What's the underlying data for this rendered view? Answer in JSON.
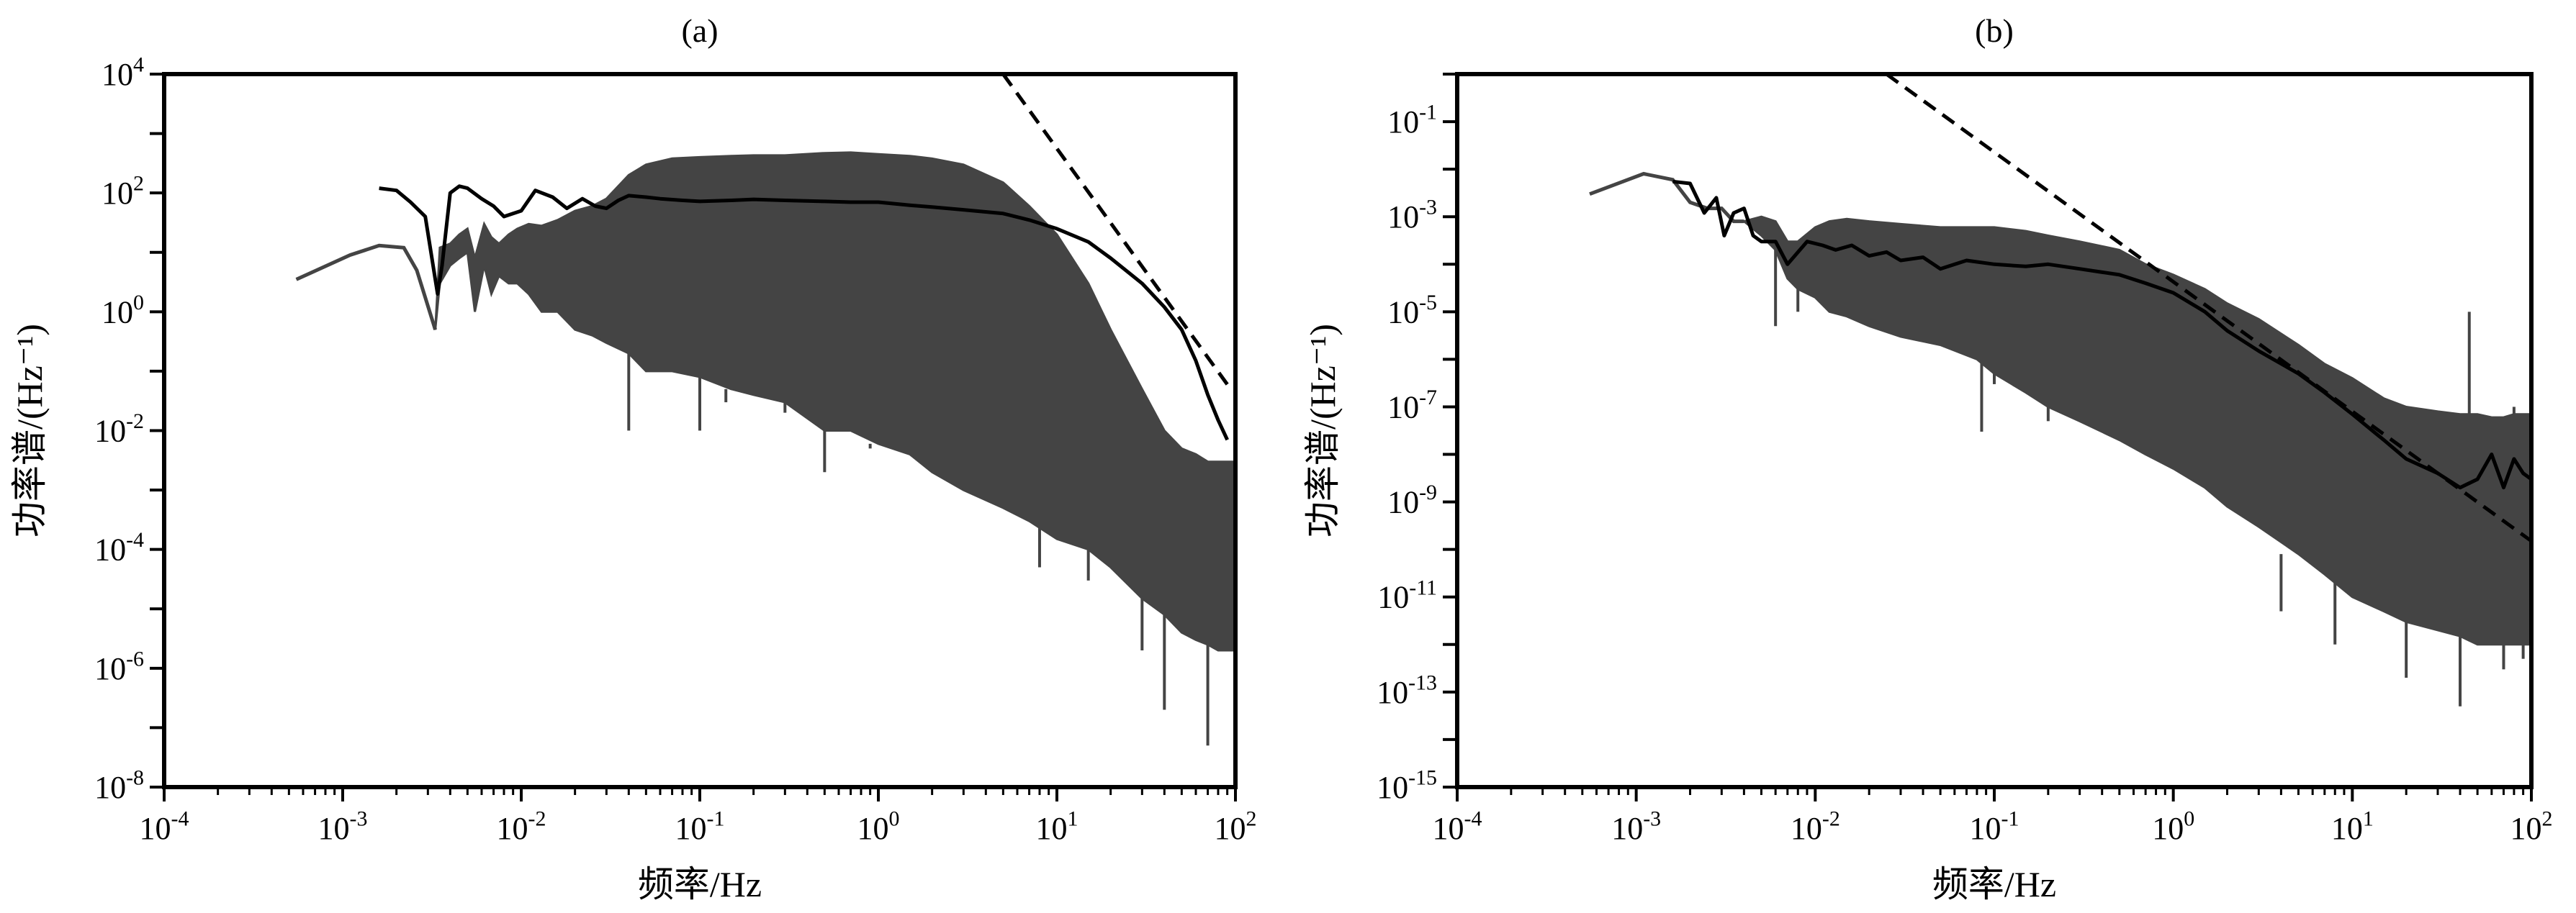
{
  "colors": {
    "raw_spectrum": "#444444",
    "smoothed_spectrum": "#000000",
    "reference_line": "#000000",
    "axes": "#000000"
  },
  "chart_data": [
    {
      "type": "line",
      "title": "(a)",
      "xlabel": "频率/Hz",
      "ylabel": "功率谱/(Hz⁻¹)",
      "x_scale": "log",
      "y_scale": "log",
      "xlim": [
        0.0001,
        100
      ],
      "ylim": [
        1e-08,
        10000
      ],
      "x_ticks": [
        {
          "base": "10",
          "exp": "-4"
        },
        {
          "base": "10",
          "exp": "-3"
        },
        {
          "base": "10",
          "exp": "-2"
        },
        {
          "base": "10",
          "exp": "-1"
        },
        {
          "base": "10",
          "exp": "0"
        },
        {
          "base": "10",
          "exp": "1"
        },
        {
          "base": "10",
          "exp": "2"
        }
      ],
      "y_ticks": [
        {
          "base": "10",
          "exp": "-8"
        },
        {
          "base": "10",
          "exp": "-6"
        },
        {
          "base": "10",
          "exp": "-4"
        },
        {
          "base": "10",
          "exp": "-2"
        },
        {
          "base": "10",
          "exp": "0"
        },
        {
          "base": "10",
          "exp": "2"
        },
        {
          "base": "10",
          "exp": "4"
        }
      ],
      "grid": false,
      "series": [
        {
          "style": "raw-spectrum-band",
          "x": [
            0.00055,
            0.0011,
            0.0016,
            0.0022,
            0.0026,
            0.0033,
            0.0035,
            0.004,
            0.0045,
            0.005,
            0.0055,
            0.0062,
            0.0068,
            0.0075,
            0.0085,
            0.0095,
            0.011,
            0.013,
            0.016,
            0.02,
            0.025,
            0.03,
            0.04,
            0.05,
            0.07,
            0.1,
            0.15,
            0.2,
            0.3,
            0.5,
            0.7,
            1,
            1.5,
            2,
            3,
            5,
            7,
            10,
            15,
            20,
            30,
            40,
            50,
            60,
            70,
            80,
            90,
            100
          ],
          "upper": [
            3.5,
            9,
            13,
            12,
            5,
            0.5,
            12,
            14,
            20,
            25,
            8,
            30,
            18,
            14,
            20,
            25,
            30,
            28,
            35,
            50,
            60,
            80,
            200,
            300,
            380,
            400,
            420,
            430,
            430,
            470,
            480,
            450,
            420,
            380,
            300,
            150,
            60,
            20,
            3,
            0.5,
            0.05,
            0.01,
            0.005,
            0.004,
            0.003,
            0.003,
            0.003,
            0.003
          ],
          "lower": [
            3.5,
            9,
            13,
            12,
            5,
            0.5,
            3,
            6,
            8,
            10,
            1,
            6,
            2,
            4,
            3,
            3,
            2,
            1,
            1,
            0.5,
            0.4,
            0.3,
            0.2,
            0.1,
            0.1,
            0.08,
            0.05,
            0.04,
            0.03,
            0.01,
            0.01,
            0.006,
            0.004,
            0.002,
            0.001,
            0.0005,
            0.0003,
            0.00015,
            0.0001,
            5e-05,
            1.5e-05,
            8e-06,
            4e-06,
            3e-06,
            2.5e-06,
            2e-06,
            2e-06,
            2e-06
          ],
          "dips": [
            [
              0.04,
              0.01
            ],
            [
              0.1,
              0.01
            ],
            [
              0.14,
              0.03
            ],
            [
              0.3,
              0.02
            ],
            [
              0.5,
              0.002
            ],
            [
              0.9,
              0.005
            ],
            [
              1.5,
              0.004
            ],
            [
              3,
              0.001
            ],
            [
              8,
              5e-05
            ],
            [
              15,
              3e-05
            ],
            [
              30,
              2e-06
            ],
            [
              40,
              2e-07
            ],
            [
              60,
              3e-06
            ],
            [
              70,
              5e-08
            ],
            [
              80,
              6e-06
            ]
          ]
        },
        {
          "style": "smoothed-spectrum",
          "x": [
            0.0016,
            0.002,
            0.0024,
            0.0029,
            0.0034,
            0.0036,
            0.004,
            0.0045,
            0.005,
            0.006,
            0.007,
            0.008,
            0.009,
            0.01,
            0.012,
            0.015,
            0.018,
            0.022,
            0.026,
            0.03,
            0.035,
            0.04,
            0.05,
            0.06,
            0.08,
            0.1,
            0.15,
            0.2,
            0.3,
            0.5,
            0.7,
            1,
            1.5,
            2,
            3,
            5,
            7,
            10,
            15,
            20,
            30,
            40,
            50,
            60,
            70,
            80,
            90
          ],
          "y": [
            120,
            110,
            70,
            40,
            2,
            6,
            100,
            130,
            120,
            80,
            60,
            40,
            45,
            50,
            110,
            85,
            55,
            80,
            60,
            55,
            75,
            90,
            85,
            80,
            75,
            72,
            75,
            78,
            75,
            72,
            70,
            70,
            62,
            58,
            52,
            45,
            35,
            25,
            15,
            8,
            3,
            1.2,
            0.5,
            0.15,
            0.04,
            0.015,
            0.007
          ]
        },
        {
          "style": "reference-dashed",
          "x": [
            5,
            90
          ],
          "y": [
            10000,
            0.06
          ]
        }
      ]
    },
    {
      "type": "line",
      "title": "(b)",
      "xlabel": "频率/Hz",
      "ylabel": "功率谱/(Hz⁻¹)",
      "x_scale": "log",
      "y_scale": "log",
      "xlim": [
        0.0001,
        100
      ],
      "ylim": [
        1e-15,
        1
      ],
      "x_ticks": [
        {
          "base": "10",
          "exp": "-4"
        },
        {
          "base": "10",
          "exp": "-3"
        },
        {
          "base": "10",
          "exp": "-2"
        },
        {
          "base": "10",
          "exp": "-1"
        },
        {
          "base": "10",
          "exp": "0"
        },
        {
          "base": "10",
          "exp": "1"
        },
        {
          "base": "10",
          "exp": "2"
        }
      ],
      "y_ticks": [
        {
          "base": "10",
          "exp": "-15"
        },
        {
          "base": "10",
          "exp": "-13"
        },
        {
          "base": "10",
          "exp": "-11"
        },
        {
          "base": "10",
          "exp": "-9"
        },
        {
          "base": "10",
          "exp": "-7"
        },
        {
          "base": "10",
          "exp": "-5"
        },
        {
          "base": "10",
          "exp": "-3"
        },
        {
          "base": "10",
          "exp": "-1"
        }
      ],
      "grid": false,
      "series": [
        {
          "style": "raw-spectrum-band",
          "x": [
            0.00055,
            0.0011,
            0.0016,
            0.002,
            0.0025,
            0.003,
            0.0035,
            0.004,
            0.005,
            0.006,
            0.007,
            0.008,
            0.01,
            0.012,
            0.015,
            0.02,
            0.03,
            0.05,
            0.08,
            0.1,
            0.15,
            0.2,
            0.3,
            0.5,
            0.7,
            1,
            1.5,
            2,
            3,
            5,
            7,
            10,
            15,
            20,
            30,
            40,
            50,
            60,
            70,
            80,
            90,
            100
          ],
          "upper": [
            0.003,
            0.008,
            0.006,
            0.002,
            0.0015,
            0.0015,
            0.0008,
            0.0008,
            0.001,
            0.0008,
            0.0003,
            0.0003,
            0.0006,
            0.0008,
            0.0009,
            0.0008,
            0.0007,
            0.0006,
            0.0006,
            0.0006,
            0.0005,
            0.0004,
            0.0003,
            0.0002,
            0.0001,
            6e-05,
            3e-05,
            1.5e-05,
            7e-06,
            2e-06,
            8e-07,
            4e-07,
            1.5e-07,
            1e-07,
            8e-08,
            7e-08,
            7e-08,
            6e-08,
            6e-08,
            7e-08,
            7e-08,
            7e-08
          ],
          "lower": [
            0.003,
            0.008,
            0.006,
            0.002,
            0.0015,
            0.0015,
            0.0008,
            0.0008,
            0.0004,
            0.0002,
            5e-05,
            3e-05,
            2e-05,
            1e-05,
            8e-06,
            5e-06,
            3e-06,
            2e-06,
            1e-06,
            5e-07,
            2e-07,
            1e-07,
            5e-08,
            2e-08,
            1e-08,
            5e-09,
            2e-09,
            8e-10,
            3e-10,
            8e-11,
            3e-11,
            1e-11,
            5e-12,
            3e-12,
            2e-12,
            1.5e-12,
            1e-12,
            1e-12,
            1e-12,
            1e-12,
            1e-12,
            1e-12
          ],
          "dips": [
            [
              0.006,
              5e-06
            ],
            [
              0.008,
              1e-05
            ],
            [
              0.085,
              3e-08
            ],
            [
              0.1,
              3e-07
            ],
            [
              0.2,
              5e-08
            ],
            [
              0.7,
              2e-08
            ],
            [
              4,
              5e-12
            ],
            [
              8,
              1e-12
            ],
            [
              20,
              2e-13
            ],
            [
              40,
              5e-14
            ],
            [
              50,
              3e-12
            ],
            [
              70,
              3e-13
            ],
            [
              90,
              5e-13
            ]
          ],
          "spikes": [
            [
              45,
              1e-05
            ],
            [
              80,
              1e-07
            ]
          ]
        },
        {
          "style": "smoothed-spectrum",
          "x": [
            0.0016,
            0.002,
            0.0024,
            0.0028,
            0.0031,
            0.0035,
            0.004,
            0.0045,
            0.005,
            0.006,
            0.007,
            0.009,
            0.011,
            0.013,
            0.016,
            0.02,
            0.025,
            0.03,
            0.04,
            0.05,
            0.07,
            0.1,
            0.15,
            0.2,
            0.3,
            0.5,
            0.7,
            1,
            1.5,
            2,
            3,
            5,
            7,
            10,
            15,
            20,
            30,
            40,
            50,
            60,
            70,
            80,
            90,
            100
          ],
          "y": [
            0.0055,
            0.005,
            0.0012,
            0.0025,
            0.0004,
            0.0012,
            0.0015,
            0.0004,
            0.0003,
            0.0003,
            0.0001,
            0.0003,
            0.00025,
            0.0002,
            0.00025,
            0.00015,
            0.00018,
            0.00012,
            0.00014,
            8e-05,
            0.00012,
            0.0001,
            9e-05,
            0.0001,
            8e-05,
            6e-05,
            4e-05,
            2.5e-05,
            1e-05,
            4e-06,
            1.5e-06,
            5e-07,
            2e-07,
            7e-08,
            2e-08,
            8e-09,
            4e-09,
            2e-09,
            3e-09,
            1e-08,
            2e-09,
            8e-09,
            4e-09,
            3e-09
          ]
        },
        {
          "style": "reference-dashed",
          "x": [
            0.025,
            100
          ],
          "y": [
            1,
            1.5e-10
          ]
        }
      ]
    }
  ]
}
